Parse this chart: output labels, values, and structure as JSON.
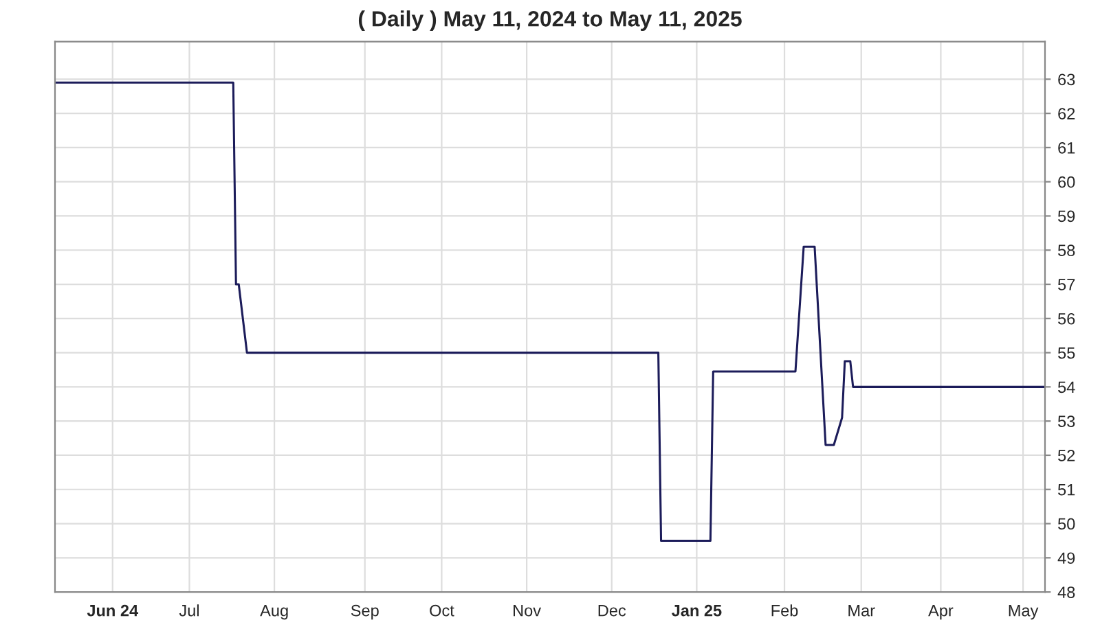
{
  "chart_data": {
    "type": "line",
    "title": "( Daily ) May 11, 2024 to May 11, 2025",
    "x": [
      "2024-05-13",
      "2024-07-17",
      "2024-07-18",
      "2024-07-19",
      "2024-07-22",
      "2024-12-19",
      "2024-12-20",
      "2025-01-07",
      "2025-01-08",
      "2025-02-07",
      "2025-02-10",
      "2025-02-14",
      "2025-02-18",
      "2025-02-21",
      "2025-02-24",
      "2025-02-25",
      "2025-02-27",
      "2025-02-28",
      "2025-05-09"
    ],
    "series": [
      {
        "color": "#1c1c5a",
        "values": [
          62.9,
          62.9,
          57.0,
          57.0,
          55.0,
          55.0,
          49.5,
          49.5,
          54.45,
          54.45,
          58.1,
          58.1,
          52.3,
          52.3,
          53.1,
          54.75,
          54.75,
          54.0,
          54.0
        ]
      }
    ],
    "xlim": [
      "2024-05-13",
      "2025-05-09"
    ],
    "xticks": [
      {
        "value": "2024-06-03",
        "label": "Jun 24"
      },
      {
        "value": "2024-07-01",
        "label": "Jul"
      },
      {
        "value": "2024-08-01",
        "label": "Aug"
      },
      {
        "value": "2024-09-03",
        "label": "Sep"
      },
      {
        "value": "2024-10-01",
        "label": "Oct"
      },
      {
        "value": "2024-11-01",
        "label": "Nov"
      },
      {
        "value": "2024-12-02",
        "label": "Dec"
      },
      {
        "value": "2025-01-02",
        "label": "Jan 25"
      },
      {
        "value": "2025-02-03",
        "label": "Feb"
      },
      {
        "value": "2025-03-03",
        "label": "Mar"
      },
      {
        "value": "2025-04-01",
        "label": "Apr"
      },
      {
        "value": "2025-05-01",
        "label": "May"
      }
    ],
    "ylim": [
      48,
      64.1
    ],
    "yticks": [
      48,
      49,
      50,
      51,
      52,
      53,
      54,
      55,
      56,
      57,
      58,
      59,
      60,
      61,
      62,
      63
    ],
    "grid": true,
    "legend": false
  }
}
